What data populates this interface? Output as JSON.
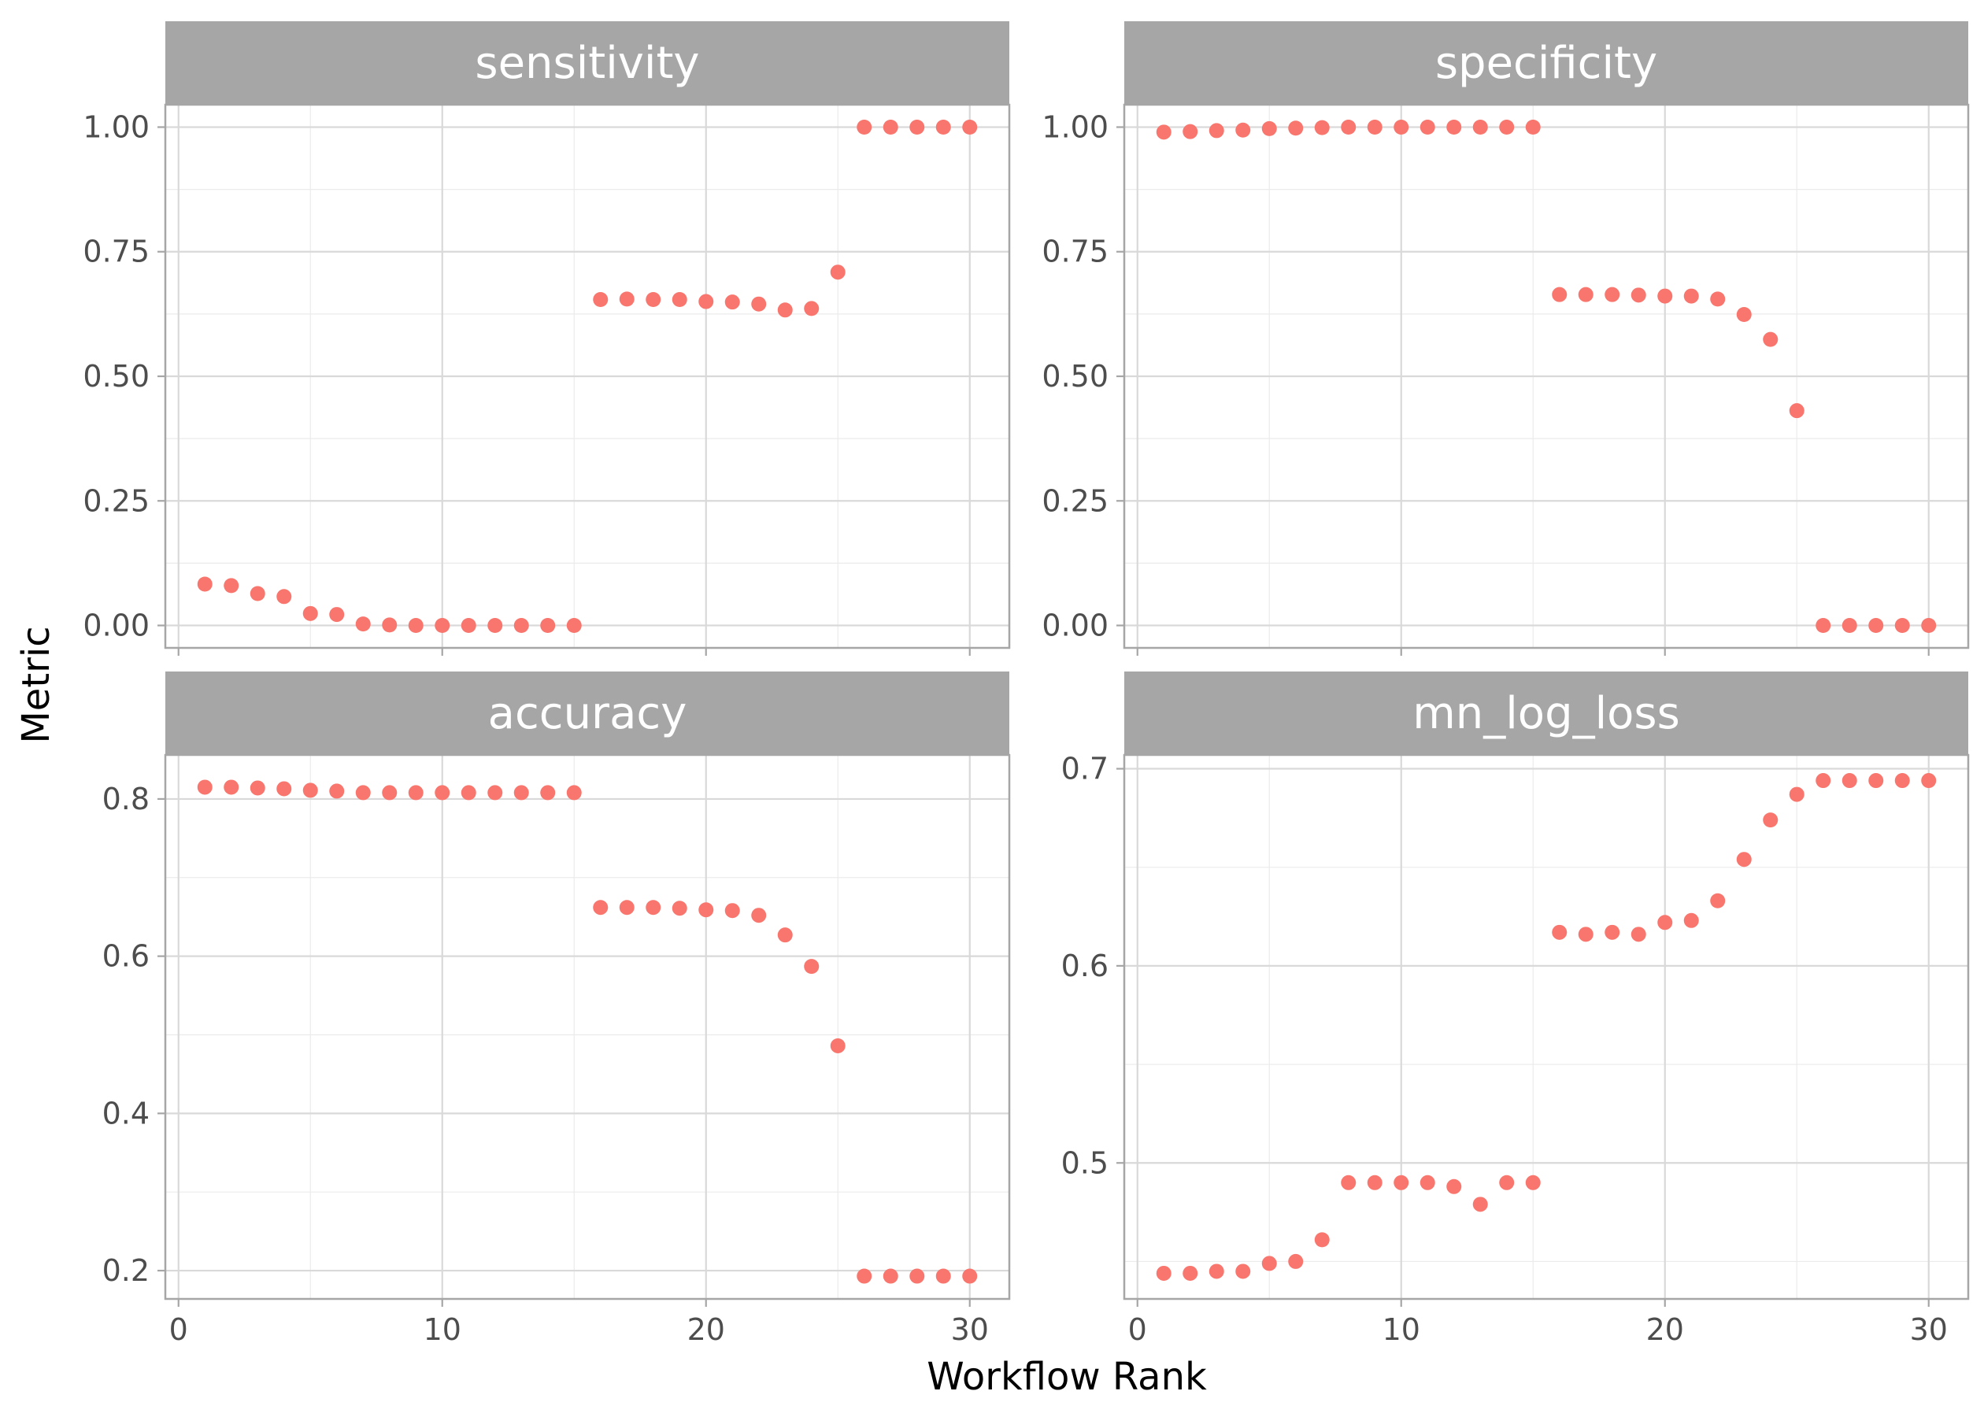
{
  "chart_data": [
    {
      "type": "scatter",
      "title": "sensitivity",
      "x": [
        1,
        2,
        3,
        4,
        5,
        6,
        7,
        8,
        9,
        10,
        11,
        12,
        13,
        14,
        15,
        16,
        17,
        18,
        19,
        20,
        21,
        22,
        23,
        24,
        25,
        26,
        27,
        28,
        29,
        30
      ],
      "y": [
        0.083,
        0.08,
        0.064,
        0.058,
        0.024,
        0.022,
        0.003,
        0.001,
        0.0,
        0.0,
        0.0,
        0.0,
        0.0,
        0.0,
        0.0,
        0.654,
        0.655,
        0.654,
        0.654,
        0.65,
        0.649,
        0.645,
        0.633,
        0.636,
        0.709,
        1.0,
        1.0,
        1.0,
        1.0,
        1.0
      ],
      "xlim": [
        -0.5,
        31.5
      ],
      "ylim": [
        -0.045,
        1.045
      ],
      "xticks": [
        0,
        10,
        20,
        30
      ],
      "xtick_labels": [],
      "yticks": [
        0,
        0.25,
        0.5,
        0.75,
        1.0
      ],
      "ytick_labels": [
        "0.00",
        "0.25",
        "0.50",
        "0.75",
        "1.00"
      ]
    },
    {
      "type": "scatter",
      "title": "specificity",
      "x": [
        1,
        2,
        3,
        4,
        5,
        6,
        7,
        8,
        9,
        10,
        11,
        12,
        13,
        14,
        15,
        16,
        17,
        18,
        19,
        20,
        21,
        22,
        23,
        24,
        25,
        26,
        27,
        28,
        29,
        30
      ],
      "y": [
        0.99,
        0.991,
        0.993,
        0.994,
        0.997,
        0.998,
        0.999,
        1.0,
        1.0,
        1.0,
        1.0,
        1.0,
        1.0,
        1.0,
        1.0,
        0.664,
        0.664,
        0.664,
        0.663,
        0.661,
        0.661,
        0.655,
        0.624,
        0.574,
        0.431,
        0.0,
        0.0,
        0.0,
        0.0,
        0.0
      ],
      "xlim": [
        -0.5,
        31.5
      ],
      "ylim": [
        -0.045,
        1.045
      ],
      "xticks": [
        0,
        10,
        20,
        30
      ],
      "xtick_labels": [],
      "yticks": [
        0,
        0.25,
        0.5,
        0.75,
        1.0
      ],
      "ytick_labels": [
        "0.00",
        "0.25",
        "0.50",
        "0.75",
        "1.00"
      ]
    },
    {
      "type": "scatter",
      "title": "accuracy",
      "x": [
        1,
        2,
        3,
        4,
        5,
        6,
        7,
        8,
        9,
        10,
        11,
        12,
        13,
        14,
        15,
        16,
        17,
        18,
        19,
        20,
        21,
        22,
        23,
        24,
        25,
        26,
        27,
        28,
        29,
        30
      ],
      "y": [
        0.815,
        0.815,
        0.814,
        0.813,
        0.811,
        0.81,
        0.808,
        0.808,
        0.808,
        0.808,
        0.808,
        0.808,
        0.808,
        0.808,
        0.808,
        0.662,
        0.662,
        0.662,
        0.661,
        0.659,
        0.658,
        0.652,
        0.627,
        0.587,
        0.486,
        0.193,
        0.193,
        0.193,
        0.193,
        0.193
      ],
      "xlim": [
        -0.5,
        31.5
      ],
      "ylim": [
        0.164,
        0.856
      ],
      "xticks": [
        0,
        10,
        20,
        30
      ],
      "xtick_labels": [
        "0",
        "10",
        "20",
        "30"
      ],
      "yticks": [
        0.2,
        0.4,
        0.6,
        0.8
      ],
      "ytick_labels": [
        "0.2",
        "0.4",
        "0.6",
        "0.8"
      ]
    },
    {
      "type": "scatter",
      "title": "mn_log_loss",
      "x": [
        1,
        2,
        3,
        4,
        5,
        6,
        7,
        8,
        9,
        10,
        11,
        12,
        13,
        14,
        15,
        16,
        17,
        18,
        19,
        20,
        21,
        22,
        23,
        24,
        25,
        26,
        27,
        28,
        29,
        30
      ],
      "y": [
        0.444,
        0.444,
        0.445,
        0.445,
        0.449,
        0.45,
        0.461,
        0.49,
        0.49,
        0.49,
        0.49,
        0.488,
        0.479,
        0.49,
        0.49,
        0.617,
        0.616,
        0.617,
        0.616,
        0.622,
        0.623,
        0.633,
        0.654,
        0.674,
        0.687,
        0.694,
        0.694,
        0.694,
        0.694,
        0.694
      ],
      "xlim": [
        -0.5,
        31.5
      ],
      "ylim": [
        0.431,
        0.707
      ],
      "xticks": [
        0,
        10,
        20,
        30
      ],
      "xtick_labels": [
        "0",
        "10",
        "20",
        "30"
      ],
      "yticks": [
        0.5,
        0.6,
        0.7
      ],
      "ytick_labels": [
        "0.5",
        "0.6",
        "0.7"
      ]
    }
  ],
  "xlabel": "Workflow Rank",
  "ylabel": "Metric",
  "point_color": "#F8766D"
}
